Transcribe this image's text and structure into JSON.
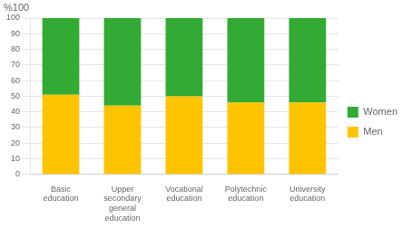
{
  "chart_data": {
    "type": "bar",
    "stacked": true,
    "categories": [
      "Basic\neducation",
      "Upper\nsecondary\ngeneral\neducation",
      "Vocational\neducation",
      "Polytechnic\neducation",
      "University\neducation"
    ],
    "series": [
      {
        "name": "Men",
        "color": "#FFC300",
        "values": [
          51,
          44,
          50,
          46,
          46
        ]
      },
      {
        "name": "Women",
        "color": "#33AA33",
        "values": [
          49,
          56,
          50,
          54,
          54
        ]
      }
    ],
    "ylabel": "%100",
    "ylim": [
      0,
      100
    ],
    "yticks": [
      0,
      10,
      20,
      30,
      40,
      50,
      60,
      70,
      80,
      90,
      100
    ],
    "grid": true,
    "legend": "right"
  }
}
